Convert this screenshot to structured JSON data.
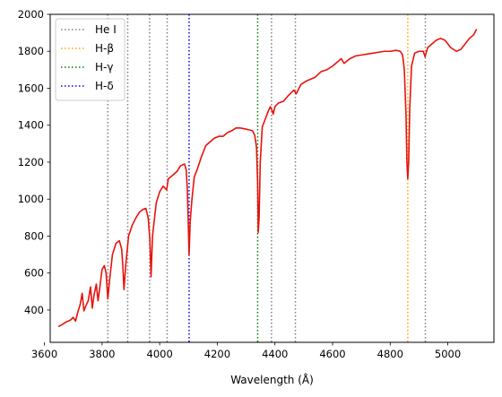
{
  "chart_data": {
    "type": "line",
    "title": "",
    "xlabel": "Wavelength (Å)",
    "ylabel": "",
    "xlim": [
      3620,
      5160
    ],
    "ylim": [
      225,
      2000
    ],
    "xticks": [
      3600,
      3800,
      4000,
      4200,
      4400,
      4600,
      4800,
      5000
    ],
    "yticks": [
      400,
      600,
      800,
      1000,
      1200,
      1400,
      1600,
      1800,
      2000
    ],
    "grid": false,
    "legend_position": "top-left",
    "series": [
      {
        "kind": "spectrum",
        "color": "#e8120c",
        "points": [
          [
            3648,
            310
          ],
          [
            3660,
            320
          ],
          [
            3675,
            335
          ],
          [
            3690,
            345
          ],
          [
            3700,
            360
          ],
          [
            3708,
            340
          ],
          [
            3716,
            390
          ],
          [
            3724,
            430
          ],
          [
            3731,
            490
          ],
          [
            3737,
            395
          ],
          [
            3743,
            420
          ],
          [
            3752,
            450
          ],
          [
            3760,
            525
          ],
          [
            3766,
            410
          ],
          [
            3772,
            480
          ],
          [
            3780,
            540
          ],
          [
            3786,
            450
          ],
          [
            3792,
            520
          ],
          [
            3800,
            620
          ],
          [
            3808,
            640
          ],
          [
            3814,
            600
          ],
          [
            3820,
            460
          ],
          [
            3826,
            560
          ],
          [
            3836,
            700
          ],
          [
            3848,
            760
          ],
          [
            3860,
            775
          ],
          [
            3868,
            730
          ],
          [
            3872,
            640
          ],
          [
            3876,
            510
          ],
          [
            3882,
            640
          ],
          [
            3892,
            800
          ],
          [
            3905,
            860
          ],
          [
            3918,
            900
          ],
          [
            3930,
            930
          ],
          [
            3943,
            945
          ],
          [
            3952,
            950
          ],
          [
            3960,
            900
          ],
          [
            3966,
            780
          ],
          [
            3970,
            580
          ],
          [
            3975,
            800
          ],
          [
            3988,
            980
          ],
          [
            4000,
            1040
          ],
          [
            4012,
            1070
          ],
          [
            4024,
            1050
          ],
          [
            4030,
            1110
          ],
          [
            4046,
            1130
          ],
          [
            4060,
            1150
          ],
          [
            4072,
            1180
          ],
          [
            4086,
            1190
          ],
          [
            4092,
            1160
          ],
          [
            4096,
            1050
          ],
          [
            4099,
            880
          ],
          [
            4102,
            700
          ],
          [
            4106,
            880
          ],
          [
            4112,
            1000
          ],
          [
            4120,
            1120
          ],
          [
            4130,
            1160
          ],
          [
            4145,
            1230
          ],
          [
            4160,
            1290
          ],
          [
            4175,
            1310
          ],
          [
            4190,
            1330
          ],
          [
            4205,
            1340
          ],
          [
            4220,
            1340
          ],
          [
            4235,
            1360
          ],
          [
            4250,
            1370
          ],
          [
            4265,
            1385
          ],
          [
            4280,
            1385
          ],
          [
            4295,
            1380
          ],
          [
            4310,
            1375
          ],
          [
            4322,
            1370
          ],
          [
            4330,
            1345
          ],
          [
            4336,
            1280
          ],
          [
            4340,
            1080
          ],
          [
            4342,
            820
          ],
          [
            4345,
            900
          ],
          [
            4349,
            1200
          ],
          [
            4356,
            1390
          ],
          [
            4368,
            1440
          ],
          [
            4378,
            1480
          ],
          [
            4384,
            1500
          ],
          [
            4390,
            1480
          ],
          [
            4394,
            1460
          ],
          [
            4400,
            1500
          ],
          [
            4412,
            1520
          ],
          [
            4430,
            1530
          ],
          [
            4446,
            1560
          ],
          [
            4466,
            1590
          ],
          [
            4474,
            1570
          ],
          [
            4490,
            1620
          ],
          [
            4510,
            1640
          ],
          [
            4540,
            1660
          ],
          [
            4560,
            1690
          ],
          [
            4580,
            1700
          ],
          [
            4600,
            1720
          ],
          [
            4615,
            1740
          ],
          [
            4630,
            1760
          ],
          [
            4640,
            1735
          ],
          [
            4660,
            1760
          ],
          [
            4680,
            1775
          ],
          [
            4700,
            1780
          ],
          [
            4720,
            1785
          ],
          [
            4740,
            1790
          ],
          [
            4760,
            1795
          ],
          [
            4780,
            1800
          ],
          [
            4800,
            1800
          ],
          [
            4820,
            1805
          ],
          [
            4835,
            1800
          ],
          [
            4843,
            1780
          ],
          [
            4849,
            1700
          ],
          [
            4855,
            1450
          ],
          [
            4858,
            1200
          ],
          [
            4861,
            1110
          ],
          [
            4864,
            1200
          ],
          [
            4868,
            1500
          ],
          [
            4874,
            1720
          ],
          [
            4885,
            1790
          ],
          [
            4900,
            1800
          ],
          [
            4915,
            1800
          ],
          [
            4921,
            1770
          ],
          [
            4930,
            1820
          ],
          [
            4945,
            1840
          ],
          [
            4960,
            1860
          ],
          [
            4975,
            1870
          ],
          [
            4990,
            1860
          ],
          [
            5010,
            1820
          ],
          [
            5030,
            1800
          ],
          [
            5045,
            1810
          ],
          [
            5060,
            1840
          ],
          [
            5075,
            1870
          ],
          [
            5090,
            1890
          ],
          [
            5100,
            1920
          ]
        ]
      },
      {
        "name": "He I",
        "color": "#808080",
        "kind": "vline",
        "x": [
          3820,
          3889,
          3965,
          4026,
          4388,
          4471,
          4922
        ]
      },
      {
        "name": "H-β",
        "color": "#ffa500",
        "kind": "vline",
        "x": [
          4861
        ]
      },
      {
        "name": "H-γ",
        "color": "#008000",
        "kind": "vline",
        "x": [
          4340
        ]
      },
      {
        "name": "H-δ",
        "color": "#0000ff",
        "kind": "vline",
        "x": [
          4102
        ]
      }
    ]
  }
}
